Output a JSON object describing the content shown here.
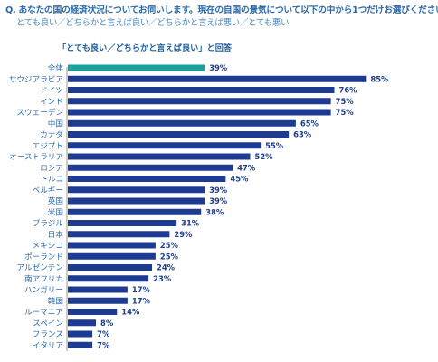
{
  "header": {
    "question": "Q. あなたの国の経済状況についてお伺いします。現在の自国の景気について以下の中から1つだけお選びください。",
    "options": "とても良い／どちらかと言えば良い／どちらかと言えば悪い／とても悪い"
  },
  "chart_data": {
    "type": "bar",
    "orientation": "horizontal",
    "title": "「とても良い／どちらかと言えば良い」と回答",
    "categories": [
      "全体",
      "サウジアラビア",
      "ドイツ",
      "インド",
      "スウェーデン",
      "中国",
      "カナダ",
      "エジプト",
      "オーストラリア",
      "ロシア",
      "トルコ",
      "ベルギー",
      "英国",
      "米国",
      "ブラジル",
      "日本",
      "メキシコ",
      "ポーランド",
      "アルゼンチン",
      "南アフリカ",
      "ハンガリー",
      "韓国",
      "ルーマニア",
      "スペイン",
      "フランス",
      "イタリア"
    ],
    "values": [
      39,
      85,
      76,
      75,
      75,
      65,
      63,
      55,
      52,
      47,
      45,
      39,
      39,
      38,
      31,
      29,
      25,
      25,
      24,
      23,
      17,
      17,
      14,
      8,
      7,
      7
    ],
    "value_labels": [
      "39%",
      "85%",
      "76%",
      "75%",
      "75%",
      "65%",
      "63%",
      "55%",
      "52%",
      "47%",
      "45%",
      "39%",
      "39%",
      "38%",
      "31%",
      "29%",
      "25%",
      "25%",
      "24%",
      "23%",
      "17%",
      "17%",
      "14%",
      "8%",
      "7%",
      "7%"
    ],
    "xlim": [
      0,
      100
    ],
    "grid": false,
    "colors": {
      "highlight": "#1aa19e",
      "bar": "#1c3b91",
      "axis": "#9a9a9a"
    }
  }
}
